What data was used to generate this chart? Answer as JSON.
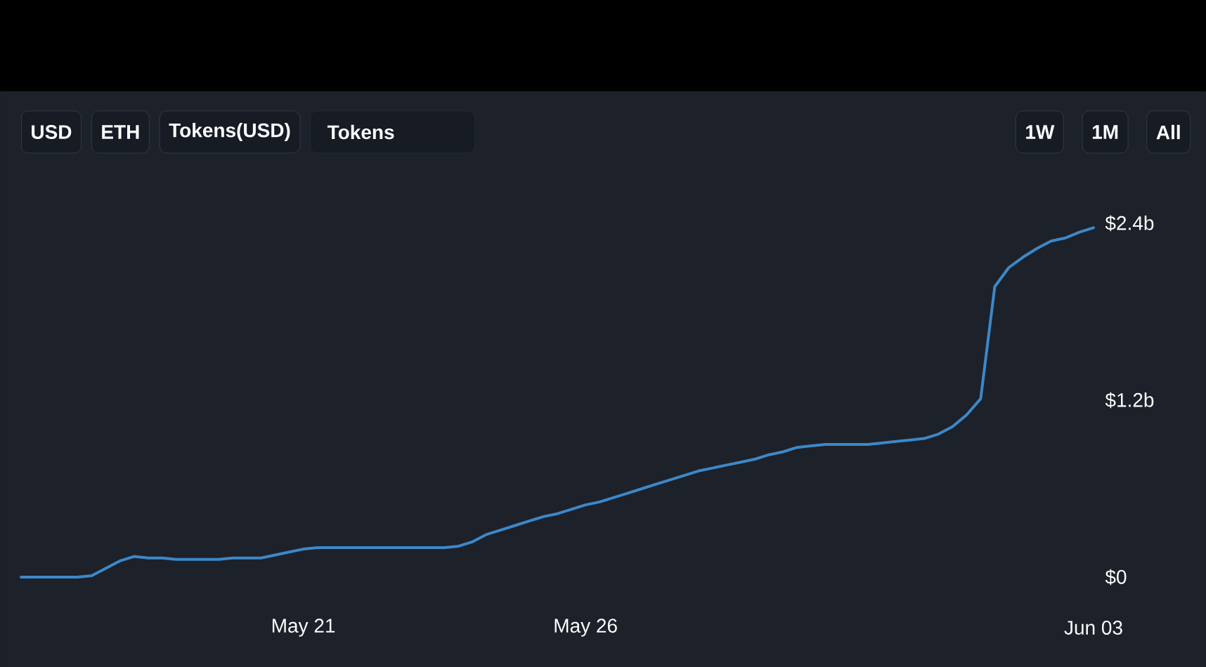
{
  "chart_data": {
    "type": "line",
    "categories": [
      null,
      null,
      null,
      null,
      null,
      null,
      null,
      null,
      null,
      null,
      null,
      null,
      null,
      null,
      null,
      null,
      null,
      null,
      null,
      null,
      "May 21",
      null,
      null,
      null,
      null,
      null,
      null,
      null,
      null,
      null,
      null,
      null,
      null,
      null,
      null,
      null,
      null,
      null,
      null,
      null,
      "May 26",
      null,
      null,
      null,
      null,
      null,
      null,
      null,
      null,
      null,
      null,
      null,
      null,
      null,
      null,
      null,
      null,
      null,
      null,
      null,
      null,
      null,
      null,
      null,
      null,
      null,
      null,
      null,
      null,
      null,
      null,
      null,
      null,
      null,
      null,
      null,
      "Jun 03"
    ],
    "values": [
      0,
      0,
      0,
      0,
      0,
      0.01,
      0.06,
      0.11,
      0.14,
      0.13,
      0.13,
      0.12,
      0.12,
      0.12,
      0.12,
      0.13,
      0.13,
      0.13,
      0.15,
      0.17,
      0.19,
      0.2,
      0.2,
      0.2,
      0.2,
      0.2,
      0.2,
      0.2,
      0.2,
      0.2,
      0.2,
      0.21,
      0.24,
      0.29,
      0.32,
      0.35,
      0.38,
      0.41,
      0.43,
      0.46,
      0.49,
      0.51,
      0.54,
      0.57,
      0.6,
      0.63,
      0.66,
      0.69,
      0.72,
      0.74,
      0.76,
      0.78,
      0.8,
      0.83,
      0.85,
      0.88,
      0.89,
      0.9,
      0.9,
      0.9,
      0.9,
      0.91,
      0.92,
      0.93,
      0.94,
      0.97,
      1.02,
      1.1,
      1.21,
      1.97,
      2.1,
      2.17,
      2.23,
      2.28,
      2.3,
      2.34,
      2.37
    ],
    "color": "#3c88c8",
    "ylim": [
      0,
      2.4
    ],
    "yticks": [
      {
        "value": 0,
        "label": "$0"
      },
      {
        "value": 1.2,
        "label": "$1.2b"
      },
      {
        "value": 2.4,
        "label": "$2.4b"
      }
    ],
    "annotations": [
      "USD",
      "ETH",
      "Tokens(USD)",
      "Tokens",
      "1W",
      "1M",
      "All"
    ]
  }
}
